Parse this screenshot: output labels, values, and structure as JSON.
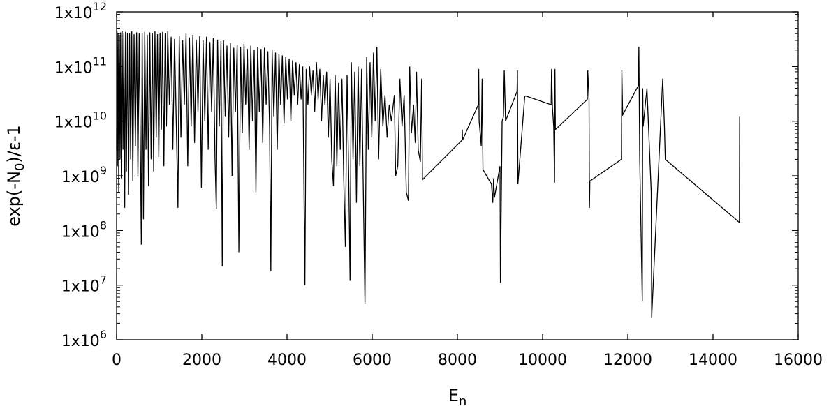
{
  "chart_data": {
    "type": "line",
    "title": "",
    "xlabel_base": "E",
    "xlabel_sub": "n",
    "ylabel": "exp(-N0)/ε-1",
    "ylabel_parts": {
      "pre": "exp(-N",
      "sub": "0",
      "post": ")/ε-1"
    },
    "x_scale": "linear",
    "y_scale": "log",
    "xlim": [
      0,
      16000
    ],
    "ylim": [
      1000000,
      1000000000000
    ],
    "xticks": [
      {
        "value": 0,
        "label": "0"
      },
      {
        "value": 2000,
        "label": "2000"
      },
      {
        "value": 4000,
        "label": "4000"
      },
      {
        "value": 6000,
        "label": "6000"
      },
      {
        "value": 8000,
        "label": "8000"
      },
      {
        "value": 10000,
        "label": "10000"
      },
      {
        "value": 12000,
        "label": "12000"
      },
      {
        "value": 14000,
        "label": "14000"
      },
      {
        "value": 16000,
        "label": "16000"
      }
    ],
    "yticks": [
      {
        "value": 1000000,
        "mantissa": "1x10",
        "exp": "6"
      },
      {
        "value": 10000000,
        "mantissa": "1x10",
        "exp": "7"
      },
      {
        "value": 100000000,
        "mantissa": "1x10",
        "exp": "8"
      },
      {
        "value": 1000000000,
        "mantissa": "1x10",
        "exp": "9"
      },
      {
        "value": 10000000000,
        "mantissa": "1x10",
        "exp": "10"
      },
      {
        "value": 100000000000,
        "mantissa": "1x10",
        "exp": "11"
      },
      {
        "value": 1000000000000,
        "mantissa": "1x10",
        "exp": "12"
      }
    ],
    "grid": false,
    "legend": "none",
    "series": [
      {
        "color": "#000000",
        "points": [
          [
            0,
            3000000000.0
          ],
          [
            10,
            450000000000.0
          ],
          [
            20,
            1500000000.0
          ],
          [
            35,
            400000000000.0
          ],
          [
            50,
            500000000.0
          ],
          [
            65,
            380000000000.0
          ],
          [
            80,
            2000000000.0
          ],
          [
            95,
            420000000000.0
          ],
          [
            110,
            900000000.0
          ],
          [
            130,
            440000000000.0
          ],
          [
            150,
            3000000000.0
          ],
          [
            170,
            400000000000.0
          ],
          [
            190,
            260000000.0
          ],
          [
            210,
            430000000000.0
          ],
          [
            230,
            1200000000.0
          ],
          [
            255,
            410000000000.0
          ],
          [
            280,
            450000000.0
          ],
          [
            305,
            400000000000.0
          ],
          [
            330,
            2000000000.0
          ],
          [
            355,
            440000000000.0
          ],
          [
            380,
            800000000.0
          ],
          [
            410,
            390000000000.0
          ],
          [
            440,
            3500000000.0
          ],
          [
            470,
            420000000000.0
          ],
          [
            500,
            1000000000.0
          ],
          [
            530,
            400000000000.0
          ],
          [
            560,
            2500000000.0
          ],
          [
            580,
            55000000.0
          ],
          [
            600,
            410000000000.0
          ],
          [
            630,
            160000000.0
          ],
          [
            660,
            430000000000.0
          ],
          [
            690,
            3000000000.0
          ],
          [
            720,
            380000000000.0
          ],
          [
            750,
            650000000.0
          ],
          [
            780,
            420000000000.0
          ],
          [
            810,
            2000000000.0
          ],
          [
            840,
            400000000000.0
          ],
          [
            870,
            1200000000.0
          ],
          [
            900,
            440000000000.0
          ],
          [
            930,
            5000000000.0
          ],
          [
            960,
            390000000000.0
          ],
          [
            990,
            2200000000.0
          ],
          [
            1020,
            410000000000.0
          ],
          [
            1050,
            7000000000.0
          ],
          [
            1080,
            430000000000.0
          ],
          [
            1110,
            1500000000.0
          ],
          [
            1140,
            400000000000.0
          ],
          [
            1170,
            8000000000.0
          ],
          [
            1200,
            440000000000.0
          ],
          [
            1240,
            20000000000.0
          ],
          [
            1280,
            350000000000.0
          ],
          [
            1320,
            3000000000.0
          ],
          [
            1360,
            320000000000.0
          ],
          [
            1400,
            10000000000.0
          ],
          [
            1440,
            260000000.0
          ],
          [
            1470,
            360000000000.0
          ],
          [
            1510,
            5000000000.0
          ],
          [
            1550,
            300000000000.0
          ],
          [
            1590,
            20000000000.0
          ],
          [
            1630,
            400000000000.0
          ],
          [
            1670,
            1500000000.0
          ],
          [
            1710,
            340000000000.0
          ],
          [
            1750,
            8000000000.0
          ],
          [
            1790,
            380000000000.0
          ],
          [
            1830,
            4000000000.0
          ],
          [
            1870,
            310000000000.0
          ],
          [
            1910,
            15000000000.0
          ],
          [
            1950,
            360000000000.0
          ],
          [
            1990,
            600000000.0
          ],
          [
            2030,
            300000000000.0
          ],
          [
            2070,
            10000000000.0
          ],
          [
            2110,
            350000000000.0
          ],
          [
            2150,
            3000000000.0
          ],
          [
            2190,
            280000000000.0
          ],
          [
            2230,
            15000000000.0
          ],
          [
            2270,
            330000000000.0
          ],
          [
            2310,
            2000000000.0
          ],
          [
            2340,
            250000000.0
          ],
          [
            2370,
            310000000000.0
          ],
          [
            2410,
            8000000000.0
          ],
          [
            2450,
            290000000000.0
          ],
          [
            2480,
            22000000.0
          ],
          [
            2510,
            300000000000.0
          ],
          [
            2550,
            12000000000.0
          ],
          [
            2590,
            240000000000.0
          ],
          [
            2630,
            5000000000.0
          ],
          [
            2670,
            270000000000.0
          ],
          [
            2710,
            1000000000.0
          ],
          [
            2750,
            220000000000.0
          ],
          [
            2790,
            15000000000.0
          ],
          [
            2830,
            250000000000.0
          ],
          [
            2870,
            40000000.0
          ],
          [
            2910,
            230000000000.0
          ],
          [
            2950,
            6000000000.0
          ],
          [
            2990,
            260000000000.0
          ],
          [
            3030,
            20000000000.0
          ],
          [
            3070,
            210000000000.0
          ],
          [
            3110,
            3000000000.0
          ],
          [
            3150,
            240000000000.0
          ],
          [
            3190,
            10000000000.0
          ],
          [
            3230,
            200000000000.0
          ],
          [
            3270,
            500000000.0
          ],
          [
            3310,
            230000000000.0
          ],
          [
            3350,
            15000000000.0
          ],
          [
            3390,
            210000000000.0
          ],
          [
            3430,
            4000000000.0
          ],
          [
            3470,
            220000000000.0
          ],
          [
            3510,
            20000000000.0
          ],
          [
            3550,
            190000000000.0
          ],
          [
            3590,
            8000000000.0
          ],
          [
            3620,
            18000000.0
          ],
          [
            3650,
            200000000000.0
          ],
          [
            3690,
            12000000000.0
          ],
          [
            3730,
            180000000000.0
          ],
          [
            3770,
            3000000000.0
          ],
          [
            3810,
            170000000000.0
          ],
          [
            3850,
            20000000000.0
          ],
          [
            3890,
            160000000000.0
          ],
          [
            3930,
            9000000000.0
          ],
          [
            3970,
            150000000000.0
          ],
          [
            4010,
            25000000000.0
          ],
          [
            4050,
            140000000000.0
          ],
          [
            4090,
            10000000000.0
          ],
          [
            4130,
            130000000000.0
          ],
          [
            4170,
            30000000000.0
          ],
          [
            4210,
            120000000000.0
          ],
          [
            4250,
            20000000000.0
          ],
          [
            4290,
            110000000000.0
          ],
          [
            4330,
            25000000000.0
          ],
          [
            4370,
            100000000000.0
          ],
          [
            4420,
            10000000.0
          ],
          [
            4450,
            90000000000.0
          ],
          [
            4490,
            20000000000.0
          ],
          [
            4530,
            100000000000.0
          ],
          [
            4570,
            30000000000.0
          ],
          [
            4610,
            85000000000.0
          ],
          [
            4650,
            15000000000.0
          ],
          [
            4690,
            120000000000.0
          ],
          [
            4730,
            25000000000.0
          ],
          [
            4770,
            90000000000.0
          ],
          [
            4810,
            10000000000.0
          ],
          [
            4850,
            70000000000.0
          ],
          [
            4890,
            20000000000.0
          ],
          [
            4930,
            80000000000.0
          ],
          [
            4970,
            5000000000.0
          ],
          [
            5010,
            60000000000.0
          ],
          [
            5050,
            2000000000.0
          ],
          [
            5090,
            650000000.0
          ],
          [
            5130,
            70000000000.0
          ],
          [
            5170,
            1500000000.0
          ],
          [
            5210,
            50000000000.0
          ],
          [
            5250,
            3000000000.0
          ],
          [
            5290,
            60000000000.0
          ],
          [
            5330,
            1000000000.0
          ],
          [
            5370,
            50000000.0
          ],
          [
            5410,
            70000000000.0
          ],
          [
            5450,
            800000000.0
          ],
          [
            5480,
            12000000.0
          ],
          [
            5510,
            120000000000.0
          ],
          [
            5550,
            2000000000.0
          ],
          [
            5590,
            80000000000.0
          ],
          [
            5630,
            320000000.0
          ],
          [
            5670,
            100000000000.0
          ],
          [
            5710,
            1500000000.0
          ],
          [
            5750,
            90000000000.0
          ],
          [
            5790,
            600000000.0
          ],
          [
            5830,
            4500000.0
          ],
          [
            5870,
            150000000000.0
          ],
          [
            5910,
            3000000000.0
          ],
          [
            5950,
            120000000000.0
          ],
          [
            5990,
            5000000000.0
          ],
          [
            6030,
            180000000000.0
          ],
          [
            6070,
            10000000000.0
          ],
          [
            6110,
            230000000000.0
          ],
          [
            6150,
            2000000000.0
          ],
          [
            6200,
            90000000000.0
          ],
          [
            6250,
            8000000000.0
          ],
          [
            6300,
            30000000000.0
          ],
          [
            6350,
            5000000000.0
          ],
          [
            6400,
            20000000000.0
          ],
          [
            6450,
            10000000000.0
          ],
          [
            6520,
            30000000000.0
          ],
          [
            6550,
            1000000000.0
          ],
          [
            6600,
            1500000000.0
          ],
          [
            6650,
            60000000000.0
          ],
          [
            6700,
            8000000000.0
          ],
          [
            6750,
            30000000000.0
          ],
          [
            6800,
            500000000.0
          ],
          [
            6850,
            350000000.0
          ],
          [
            6880,
            100000000000.0
          ],
          [
            6920,
            6000000000.0
          ],
          [
            6970,
            20000000000.0
          ],
          [
            7010,
            4000000000.0
          ],
          [
            7040,
            80000000000.0
          ],
          [
            7080,
            3000000000.0
          ],
          [
            7130,
            1800000000.0
          ],
          [
            7160,
            60000000000.0
          ],
          [
            7180,
            850000000.0
          ],
          [
            8110,
            4500000000.0
          ],
          [
            8115,
            7000000000.0
          ],
          [
            8120,
            4500000000.0
          ],
          [
            8490,
            20000000000.0
          ],
          [
            8500,
            90000000000.0
          ],
          [
            8510,
            10000000000.0
          ],
          [
            8560,
            3500000000.0
          ],
          [
            8580,
            60000000000.0
          ],
          [
            8600,
            1300000000.0
          ],
          [
            8800,
            700000000.0
          ],
          [
            8830,
            320000000.0
          ],
          [
            8850,
            900000000.0
          ],
          [
            8870,
            400000000.0
          ],
          [
            9000,
            1500000000.0
          ],
          [
            9010,
            11000000.0
          ],
          [
            9050,
            10000000000.0
          ],
          [
            9080,
            12000000000.0
          ],
          [
            9100,
            85000000000.0
          ],
          [
            9130,
            10000000000.0
          ],
          [
            9400,
            35000000000.0
          ],
          [
            9410,
            85000000000.0
          ],
          [
            9420,
            700000000.0
          ],
          [
            9580,
            28000000000.0
          ],
          [
            9600,
            29000000000.0
          ],
          [
            10200,
            20000000000.0
          ],
          [
            10210,
            90000000000.0
          ],
          [
            10230,
            18000000000.0
          ],
          [
            10260,
            8000000000.0
          ],
          [
            10280,
            750000000.0
          ],
          [
            10290,
            90000000000.0
          ],
          [
            10300,
            7000000000.0
          ],
          [
            11050,
            25000000000.0
          ],
          [
            11060,
            85000000000.0
          ],
          [
            11090,
            25000000000.0
          ],
          [
            11100,
            260000000.0
          ],
          [
            11110,
            800000000.0
          ],
          [
            11850,
            2000000000.0
          ],
          [
            11860,
            85000000000.0
          ],
          [
            11880,
            13000000000.0
          ],
          [
            12250,
            45000000000.0
          ],
          [
            12260,
            230000000000.0
          ],
          [
            12280,
            2000000000.0
          ],
          [
            12340,
            5000000.0
          ],
          [
            12350,
            40000000000.0
          ],
          [
            12360,
            8000000000.0
          ],
          [
            12450,
            40000000000.0
          ],
          [
            12550,
            500000000.0
          ],
          [
            12560,
            2500000.0
          ],
          [
            12820,
            60000000000.0
          ],
          [
            12860,
            8000000000.0
          ],
          [
            12880,
            2000000000.0
          ],
          [
            14620,
            140000000.0
          ],
          [
            14625,
            12000000000.0
          ]
        ]
      }
    ]
  }
}
